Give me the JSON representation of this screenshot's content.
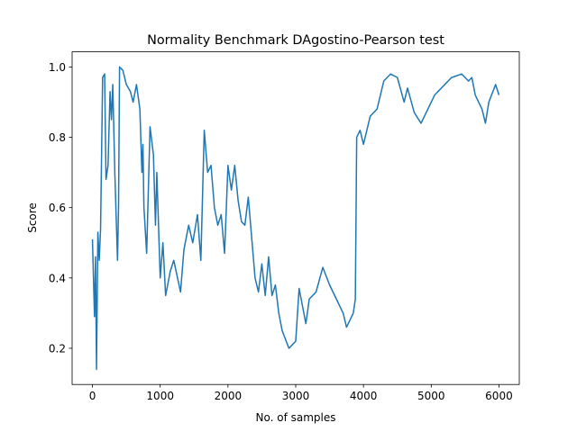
{
  "chart_data": {
    "type": "line",
    "title": "Normality Benchmark DAgostino-Pearson test",
    "xlabel": "No. of samples",
    "ylabel": "Score",
    "x": [
      0,
      30,
      45,
      60,
      80,
      100,
      120,
      150,
      180,
      200,
      230,
      260,
      280,
      300,
      330,
      370,
      385,
      400,
      450,
      500,
      560,
      600,
      650,
      700,
      730,
      745,
      760,
      800,
      850,
      900,
      930,
      950,
      1000,
      1040,
      1080,
      1150,
      1200,
      1300,
      1350,
      1420,
      1480,
      1550,
      1600,
      1650,
      1700,
      1750,
      1800,
      1850,
      1900,
      1950,
      2000,
      2050,
      2100,
      2150,
      2200,
      2250,
      2300,
      2400,
      2450,
      2500,
      2550,
      2600,
      2650,
      2700,
      2750,
      2800,
      2900,
      3000,
      3050,
      3150,
      3200,
      3300,
      3400,
      3500,
      3600,
      3700,
      3750,
      3850,
      3880,
      3900,
      3950,
      4000,
      4100,
      4200,
      4300,
      4400,
      4500,
      4600,
      4650,
      4750,
      4850,
      4950,
      5050,
      5200,
      5300,
      5450,
      5550,
      5600,
      5650,
      5750,
      5800,
      5850,
      5950,
      6000
    ],
    "series": [
      {
        "name": "score",
        "color": "#1f77b4",
        "values": [
          0.51,
          0.29,
          0.46,
          0.14,
          0.53,
          0.45,
          0.54,
          0.97,
          0.98,
          0.68,
          0.72,
          0.93,
          0.85,
          0.95,
          0.7,
          0.45,
          0.6,
          1.0,
          0.99,
          0.95,
          0.93,
          0.9,
          0.95,
          0.88,
          0.7,
          0.78,
          0.6,
          0.47,
          0.83,
          0.75,
          0.55,
          0.7,
          0.4,
          0.5,
          0.35,
          0.42,
          0.45,
          0.36,
          0.48,
          0.55,
          0.5,
          0.58,
          0.45,
          0.82,
          0.7,
          0.72,
          0.6,
          0.55,
          0.58,
          0.47,
          0.72,
          0.65,
          0.72,
          0.62,
          0.56,
          0.55,
          0.63,
          0.4,
          0.36,
          0.44,
          0.35,
          0.46,
          0.35,
          0.38,
          0.3,
          0.25,
          0.2,
          0.22,
          0.37,
          0.27,
          0.34,
          0.36,
          0.43,
          0.38,
          0.34,
          0.3,
          0.26,
          0.3,
          0.34,
          0.8,
          0.82,
          0.78,
          0.86,
          0.88,
          0.96,
          0.98,
          0.97,
          0.9,
          0.94,
          0.87,
          0.84,
          0.88,
          0.92,
          0.95,
          0.97,
          0.98,
          0.96,
          0.97,
          0.92,
          0.88,
          0.84,
          0.9,
          0.95,
          0.92
        ]
      }
    ],
    "xlim": [
      -300,
      6300
    ],
    "xticks": [
      0,
      1000,
      2000,
      3000,
      4000,
      5000,
      6000
    ],
    "ylim": [
      0.097,
      1.043
    ],
    "yticks": [
      0.2,
      0.4,
      0.6,
      0.8,
      {
        "value": 1,
        "label": "1.0"
      }
    ]
  }
}
